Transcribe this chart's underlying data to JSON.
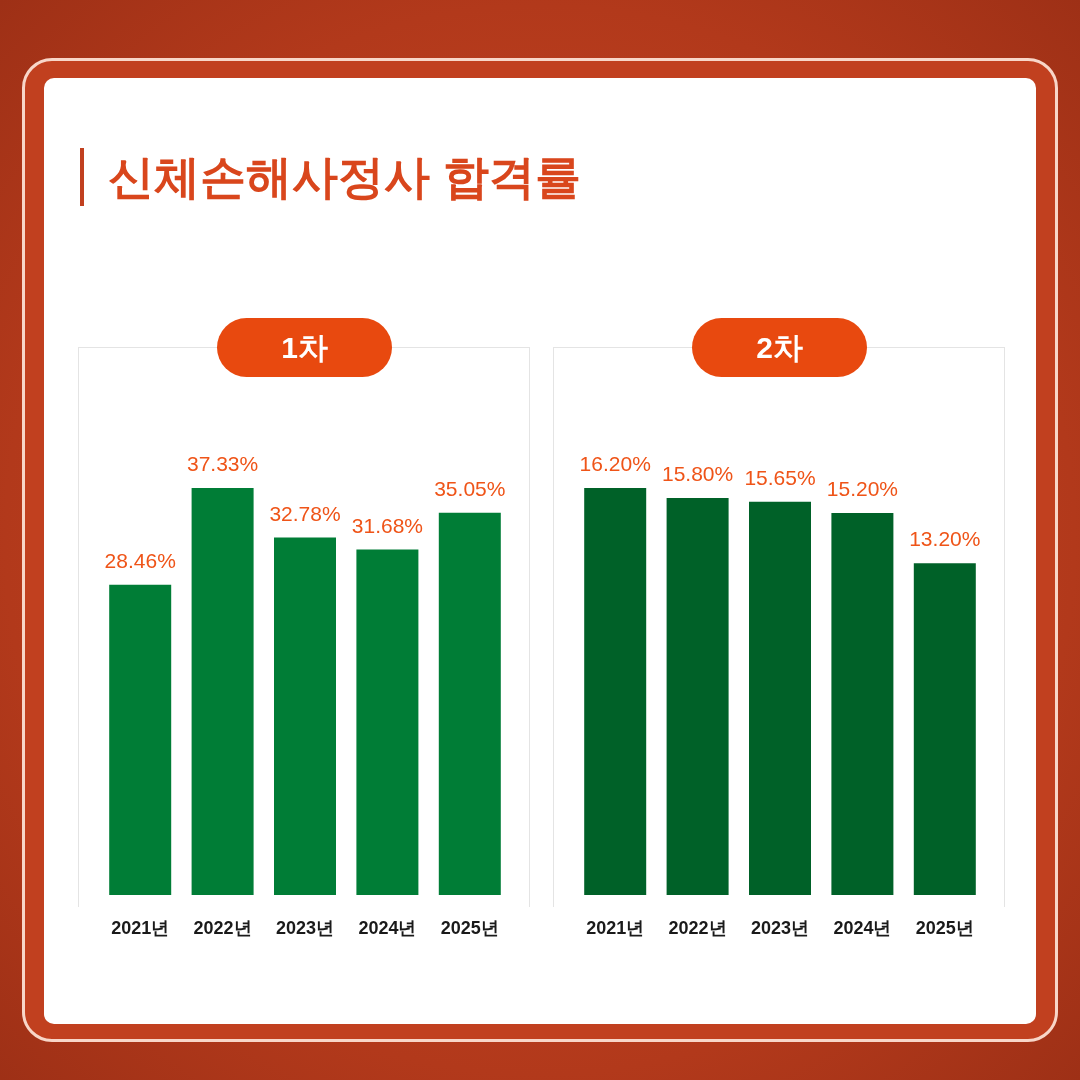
{
  "chart_data": [
    {
      "type": "bar",
      "title": "신체손해사정사 합격률",
      "subtitle": "1차",
      "categories": [
        "2021년",
        "2022년",
        "2023년",
        "2024년",
        "2025년"
      ],
      "values": [
        28.46,
        37.33,
        32.78,
        31.68,
        35.05
      ],
      "value_labels": [
        "28.46%",
        "37.33%",
        "32.78%",
        "31.68%",
        "35.05%"
      ],
      "color": "#007d36",
      "tick_labels": "x"
    },
    {
      "type": "bar",
      "subtitle": "2차",
      "categories": [
        "2021년",
        "2022년",
        "2023년",
        "2024년",
        "2025년"
      ],
      "values": [
        16.2,
        15.8,
        15.65,
        15.2,
        13.2
      ],
      "value_labels": [
        "16.20%",
        "15.80%",
        "15.65%",
        "15.20%",
        "13.20%"
      ],
      "color": "#006128",
      "tick_labels": "x"
    }
  ]
}
